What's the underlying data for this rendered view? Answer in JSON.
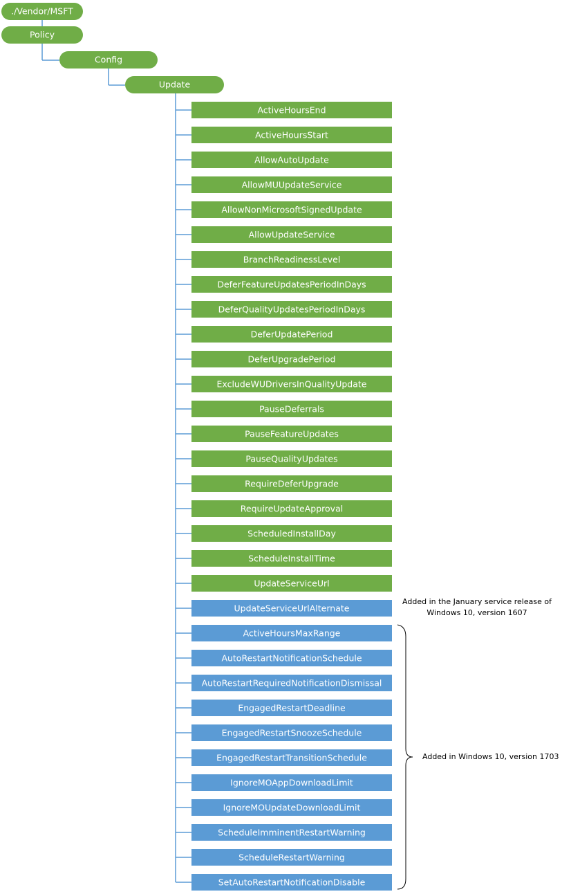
{
  "tree": [
    "./Vendor/MSFT",
    "Policy",
    "Config",
    "Update"
  ],
  "leaf_groups": [
    {
      "color": "#70ad47",
      "labels": [
        "ActiveHoursEnd",
        "ActiveHoursStart",
        "AllowAutoUpdate",
        "AllowMUUpdateService",
        "AllowNonMicrosoftSignedUpdate",
        "AllowUpdateService",
        "BranchReadinessLevel",
        "DeferFeatureUpdatesPeriodInDays",
        "DeferQualityUpdatesPeriodInDays",
        "DeferUpdatePeriod",
        "DeferUpgradePeriod",
        "ExcludeWUDriversInQualityUpdate",
        "PauseDeferrals",
        "PauseFeatureUpdates",
        "PauseQualityUpdates",
        "RequireDeferUpgrade",
        "RequireUpdateApproval",
        "ScheduledInstallDay",
        "ScheduleInstallTime",
        "UpdateServiceUrl"
      ]
    },
    {
      "color": "#5b9bd5",
      "labels": [
        "UpdateServiceUrlAlternate",
        "ActiveHoursMaxRange",
        "AutoRestartNotificationSchedule",
        "AutoRestartRequiredNotificationDismissal",
        "EngagedRestartDeadline",
        "EngagedRestartSnoozeSchedule",
        "EngagedRestartTransitionSchedule",
        "IgnoreMOAppDownloadLimit",
        "IgnoreMOUpdateDownloadLimit",
        "ScheduleImminentRestartWarning",
        "ScheduleRestartWarning",
        "SetAutoRestartNotificationDisable"
      ]
    }
  ],
  "annotations": {
    "release_1607": [
      "Added in the January service release of",
      "Windows 10, version 1607"
    ],
    "release_1703": "Added in Windows 10, version 1703"
  }
}
